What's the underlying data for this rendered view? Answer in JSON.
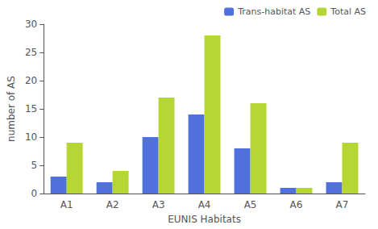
{
  "chart_data": {
    "type": "bar",
    "categories": [
      "A1",
      "A2",
      "A3",
      "A4",
      "A5",
      "A6",
      "A7"
    ],
    "series": [
      {
        "name": "Trans-habitat AS",
        "values": [
          3,
          2,
          10,
          14,
          8,
          1,
          2
        ]
      },
      {
        "name": "Total AS",
        "values": [
          9,
          4,
          17,
          28,
          16,
          1,
          9
        ]
      }
    ],
    "xlabel": "EUNIS Habitats",
    "ylabel": "number of AS",
    "ylim": [
      0,
      30
    ],
    "yticks": [
      0,
      5,
      10,
      15,
      20,
      25,
      30
    ],
    "grid": false,
    "legend": "upper right"
  }
}
